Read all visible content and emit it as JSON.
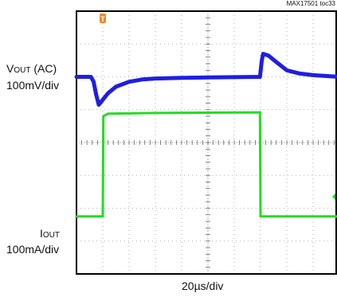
{
  "chart_data": {
    "type": "line",
    "tag": "MAX17501 toc33",
    "time_scale": "20µs/div",
    "divisions": {
      "x": 10,
      "y": 8
    },
    "grid": true,
    "trigger_marker": "T",
    "channels": [
      {
        "label_main": "V",
        "label_sub": "OUT",
        "label_suffix": " (AC)",
        "scale": "100mV/div",
        "color": "#1f1fe0",
        "points": [
          [
            0,
            2.0
          ],
          [
            0.55,
            2.0
          ],
          [
            0.65,
            2.15
          ],
          [
            0.75,
            2.55
          ],
          [
            0.85,
            2.85
          ],
          [
            0.95,
            2.75
          ],
          [
            1.2,
            2.5
          ],
          [
            1.5,
            2.3
          ],
          [
            2.0,
            2.15
          ],
          [
            2.5,
            2.08
          ],
          [
            3.0,
            2.05
          ],
          [
            4.0,
            2.03
          ],
          [
            5.0,
            2.02
          ],
          [
            6.0,
            2.01
          ],
          [
            6.98,
            2.0
          ],
          [
            7.05,
            1.5
          ],
          [
            7.1,
            1.3
          ],
          [
            7.3,
            1.35
          ],
          [
            7.6,
            1.55
          ],
          [
            8.0,
            1.8
          ],
          [
            8.5,
            1.9
          ],
          [
            9.0,
            1.95
          ],
          [
            10.0,
            2.0
          ]
        ]
      },
      {
        "label_main": "I",
        "label_sub": "OUT",
        "label_suffix": "",
        "scale": "100mA/div",
        "color": "#22dd22",
        "points": [
          [
            0,
            6.25
          ],
          [
            1.0,
            6.25
          ],
          [
            1.02,
            3.2
          ],
          [
            1.2,
            3.12
          ],
          [
            3.0,
            3.1
          ],
          [
            6.98,
            3.08
          ],
          [
            7.0,
            6.25
          ],
          [
            10.0,
            6.25
          ]
        ]
      }
    ]
  }
}
